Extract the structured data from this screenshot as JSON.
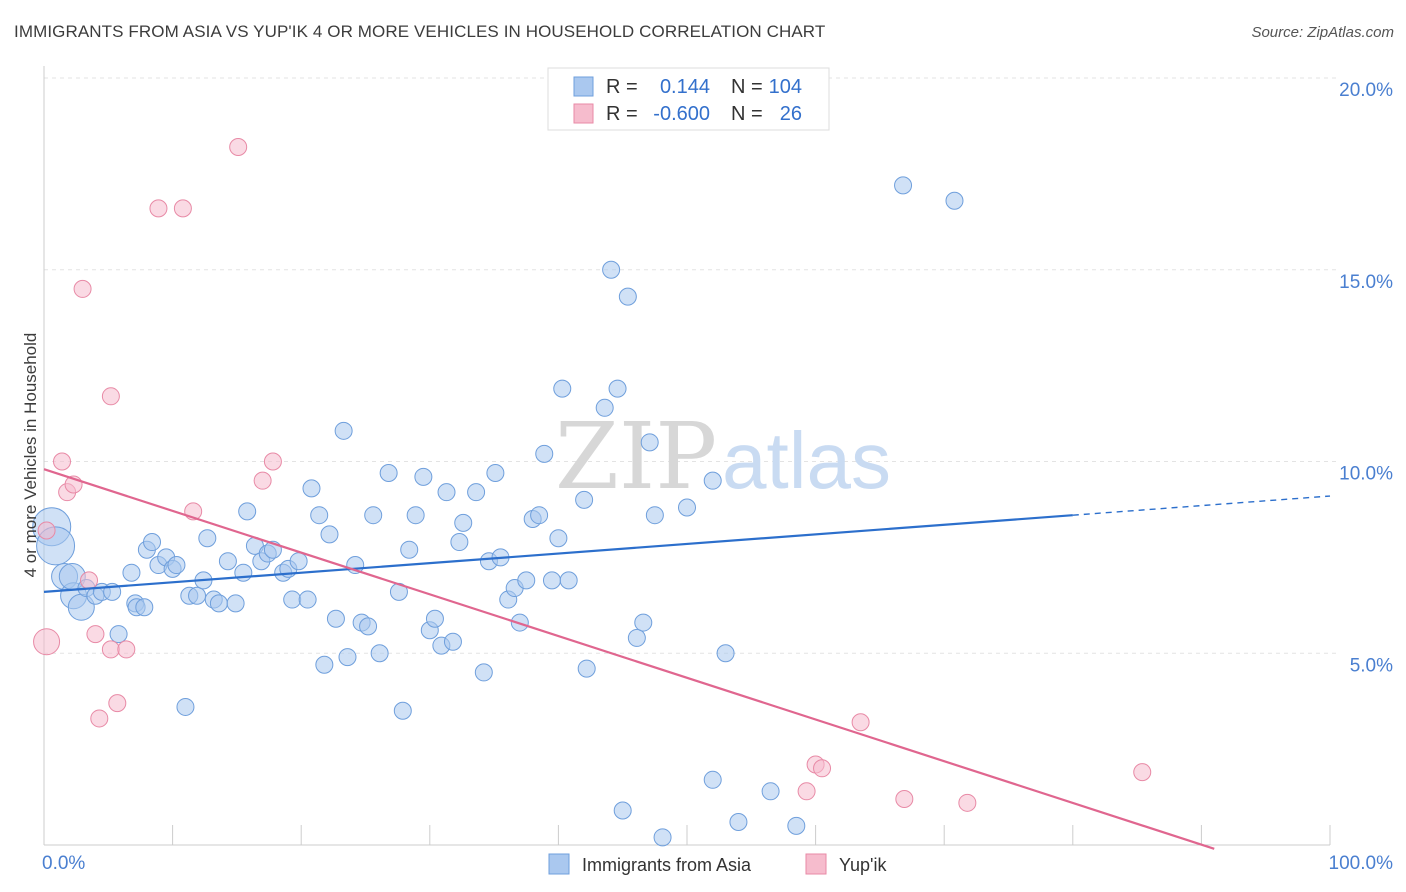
{
  "header": {
    "title": "IMMIGRANTS FROM ASIA VS YUP'IK 4 OR MORE VEHICLES IN HOUSEHOLD CORRELATION CHART",
    "source": "Source: ZipAtlas.com"
  },
  "watermark": {
    "zip": "ZIP",
    "atlas": "atlas"
  },
  "legend": {
    "rows": [
      {
        "r_label": "R =",
        "r_value": "0.144",
        "n_label": "N =",
        "n_value": "104",
        "color": "#aac8ef"
      },
      {
        "r_label": "R =",
        "r_value": "-0.600",
        "n_label": "N =",
        "n_value": "26",
        "color": "#f6bccd"
      }
    ]
  },
  "bottom_legend": [
    {
      "label": "Immigrants from Asia",
      "color": "#aac8ef"
    },
    {
      "label": "Yup'ik",
      "color": "#f6bccd"
    }
  ],
  "chart_data": {
    "type": "scatter",
    "title": "IMMIGRANTS FROM ASIA VS YUP'IK 4 OR MORE VEHICLES IN HOUSEHOLD CORRELATION CHART",
    "xlabel": "",
    "ylabel": "4 or more Vehicles in Household",
    "xlim": [
      0,
      100
    ],
    "ylim": [
      0,
      20
    ],
    "x_tick_labels": [
      "0.0%",
      "100.0%"
    ],
    "y_ticks": [
      5,
      10,
      15,
      20
    ],
    "y_tick_labels": [
      "5.0%",
      "10.0%",
      "15.0%",
      "20.0%"
    ],
    "grid": true,
    "series": [
      {
        "name": "Immigrants from Asia",
        "color": "#aac8ef",
        "stroke": "#6f9fdc",
        "trend_color": "#2c6fcc",
        "trend": {
          "x0": 0,
          "y0": 6.6,
          "x1": 80,
          "y1": 8.6,
          "dash_x1": 100,
          "dash_y1": 9.1
        },
        "points": [
          {
            "x": 0.6,
            "y": 8.3,
            "s": 3
          },
          {
            "x": 0.9,
            "y": 7.8,
            "s": 3
          },
          {
            "x": 1.6,
            "y": 7.0,
            "s": 2
          },
          {
            "x": 2.3,
            "y": 6.5,
            "s": 2
          },
          {
            "x": 2.9,
            "y": 6.2,
            "s": 2
          },
          {
            "x": 2.2,
            "y": 7.0,
            "s": 2
          },
          {
            "x": 3.3,
            "y": 6.7,
            "s": 1
          },
          {
            "x": 4.0,
            "y": 6.5,
            "s": 1
          },
          {
            "x": 4.5,
            "y": 6.6,
            "s": 1
          },
          {
            "x": 5.3,
            "y": 6.6,
            "s": 1
          },
          {
            "x": 5.8,
            "y": 5.5,
            "s": 1
          },
          {
            "x": 7.1,
            "y": 6.3,
            "s": 1
          },
          {
            "x": 7.2,
            "y": 6.2,
            "s": 1
          },
          {
            "x": 6.8,
            "y": 7.1,
            "s": 1
          },
          {
            "x": 7.8,
            "y": 6.2,
            "s": 1
          },
          {
            "x": 8.0,
            "y": 7.7,
            "s": 1
          },
          {
            "x": 8.4,
            "y": 7.9,
            "s": 1
          },
          {
            "x": 8.9,
            "y": 7.3,
            "s": 1
          },
          {
            "x": 9.5,
            "y": 7.5,
            "s": 1
          },
          {
            "x": 10.0,
            "y": 7.2,
            "s": 1
          },
          {
            "x": 10.3,
            "y": 7.3,
            "s": 1
          },
          {
            "x": 11.0,
            "y": 3.6,
            "s": 1
          },
          {
            "x": 11.3,
            "y": 6.5,
            "s": 1
          },
          {
            "x": 11.9,
            "y": 6.5,
            "s": 1
          },
          {
            "x": 12.4,
            "y": 6.9,
            "s": 1
          },
          {
            "x": 12.7,
            "y": 8.0,
            "s": 1
          },
          {
            "x": 13.2,
            "y": 6.4,
            "s": 1
          },
          {
            "x": 13.6,
            "y": 6.3,
            "s": 1
          },
          {
            "x": 14.3,
            "y": 7.4,
            "s": 1
          },
          {
            "x": 14.9,
            "y": 6.3,
            "s": 1
          },
          {
            "x": 15.5,
            "y": 7.1,
            "s": 1
          },
          {
            "x": 15.8,
            "y": 8.7,
            "s": 1
          },
          {
            "x": 16.4,
            "y": 7.8,
            "s": 1
          },
          {
            "x": 16.9,
            "y": 7.4,
            "s": 1
          },
          {
            "x": 17.4,
            "y": 7.6,
            "s": 1
          },
          {
            "x": 17.8,
            "y": 7.7,
            "s": 1
          },
          {
            "x": 18.6,
            "y": 7.1,
            "s": 1
          },
          {
            "x": 19.0,
            "y": 7.2,
            "s": 1
          },
          {
            "x": 19.3,
            "y": 6.4,
            "s": 1
          },
          {
            "x": 19.8,
            "y": 7.4,
            "s": 1
          },
          {
            "x": 20.5,
            "y": 6.4,
            "s": 1
          },
          {
            "x": 20.8,
            "y": 9.3,
            "s": 1
          },
          {
            "x": 21.4,
            "y": 8.6,
            "s": 1
          },
          {
            "x": 21.8,
            "y": 4.7,
            "s": 1
          },
          {
            "x": 22.2,
            "y": 8.1,
            "s": 1
          },
          {
            "x": 22.7,
            "y": 5.9,
            "s": 1
          },
          {
            "x": 23.3,
            "y": 10.8,
            "s": 1
          },
          {
            "x": 23.6,
            "y": 4.9,
            "s": 1
          },
          {
            "x": 24.2,
            "y": 7.3,
            "s": 1
          },
          {
            "x": 24.7,
            "y": 5.8,
            "s": 1
          },
          {
            "x": 25.2,
            "y": 5.7,
            "s": 1
          },
          {
            "x": 25.6,
            "y": 8.6,
            "s": 1
          },
          {
            "x": 26.1,
            "y": 5.0,
            "s": 1
          },
          {
            "x": 26.8,
            "y": 9.7,
            "s": 1
          },
          {
            "x": 27.6,
            "y": 6.6,
            "s": 1
          },
          {
            "x": 27.9,
            "y": 3.5,
            "s": 1
          },
          {
            "x": 28.4,
            "y": 7.7,
            "s": 1
          },
          {
            "x": 28.9,
            "y": 8.6,
            "s": 1
          },
          {
            "x": 29.5,
            "y": 9.6,
            "s": 1
          },
          {
            "x": 30.0,
            "y": 5.6,
            "s": 1
          },
          {
            "x": 30.4,
            "y": 5.9,
            "s": 1
          },
          {
            "x": 30.9,
            "y": 5.2,
            "s": 1
          },
          {
            "x": 31.3,
            "y": 9.2,
            "s": 1
          },
          {
            "x": 31.8,
            "y": 5.3,
            "s": 1
          },
          {
            "x": 32.3,
            "y": 7.9,
            "s": 1
          },
          {
            "x": 32.6,
            "y": 8.4,
            "s": 1
          },
          {
            "x": 33.6,
            "y": 9.2,
            "s": 1
          },
          {
            "x": 34.2,
            "y": 4.5,
            "s": 1
          },
          {
            "x": 34.6,
            "y": 7.4,
            "s": 1
          },
          {
            "x": 35.1,
            "y": 9.7,
            "s": 1
          },
          {
            "x": 35.5,
            "y": 7.5,
            "s": 1
          },
          {
            "x": 36.1,
            "y": 6.4,
            "s": 1
          },
          {
            "x": 36.6,
            "y": 6.7,
            "s": 1
          },
          {
            "x": 37.0,
            "y": 5.8,
            "s": 1
          },
          {
            "x": 37.5,
            "y": 6.9,
            "s": 1
          },
          {
            "x": 38.0,
            "y": 8.5,
            "s": 1
          },
          {
            "x": 38.5,
            "y": 8.6,
            "s": 1
          },
          {
            "x": 38.9,
            "y": 10.2,
            "s": 1
          },
          {
            "x": 39.5,
            "y": 6.9,
            "s": 1
          },
          {
            "x": 40.0,
            "y": 8.0,
            "s": 1
          },
          {
            "x": 40.3,
            "y": 11.9,
            "s": 1
          },
          {
            "x": 40.8,
            "y": 6.9,
            "s": 1
          },
          {
            "x": 42.2,
            "y": 4.6,
            "s": 1
          },
          {
            "x": 42.0,
            "y": 9.0,
            "s": 1
          },
          {
            "x": 43.6,
            "y": 11.4,
            "s": 1
          },
          {
            "x": 44.1,
            "y": 15.0,
            "s": 1
          },
          {
            "x": 44.6,
            "y": 11.9,
            "s": 1
          },
          {
            "x": 45.0,
            "y": 0.9,
            "s": 1
          },
          {
            "x": 45.4,
            "y": 14.3,
            "s": 1
          },
          {
            "x": 46.1,
            "y": 5.4,
            "s": 1
          },
          {
            "x": 46.6,
            "y": 5.8,
            "s": 1
          },
          {
            "x": 47.1,
            "y": 10.5,
            "s": 1
          },
          {
            "x": 47.5,
            "y": 8.6,
            "s": 1
          },
          {
            "x": 48.1,
            "y": 0.2,
            "s": 1
          },
          {
            "x": 50.0,
            "y": 8.8,
            "s": 1
          },
          {
            "x": 52.0,
            "y": 1.7,
            "s": 1
          },
          {
            "x": 52.0,
            "y": 9.5,
            "s": 1
          },
          {
            "x": 53.0,
            "y": 5.0,
            "s": 1
          },
          {
            "x": 54.0,
            "y": 0.6,
            "s": 1
          },
          {
            "x": 56.5,
            "y": 1.4,
            "s": 1
          },
          {
            "x": 58.5,
            "y": 0.5,
            "s": 1
          },
          {
            "x": 66.8,
            "y": 17.2,
            "s": 1
          },
          {
            "x": 70.8,
            "y": 16.8,
            "s": 1
          }
        ]
      },
      {
        "name": "Yup'ik",
        "color": "#f6bccd",
        "stroke": "#e88aa6",
        "trend_color": "#e0668f",
        "trend": {
          "x0": 0,
          "y0": 9.8,
          "x1": 91,
          "y1": -0.1
        },
        "points": [
          {
            "x": 0.2,
            "y": 5.3,
            "s": 2
          },
          {
            "x": 0.2,
            "y": 8.2,
            "s": 1
          },
          {
            "x": 1.4,
            "y": 10.0,
            "s": 1
          },
          {
            "x": 1.8,
            "y": 9.2,
            "s": 1
          },
          {
            "x": 2.3,
            "y": 9.4,
            "s": 1
          },
          {
            "x": 3.0,
            "y": 14.5,
            "s": 1
          },
          {
            "x": 3.5,
            "y": 6.9,
            "s": 1
          },
          {
            "x": 4.0,
            "y": 5.5,
            "s": 1
          },
          {
            "x": 4.3,
            "y": 3.3,
            "s": 1
          },
          {
            "x": 5.2,
            "y": 11.7,
            "s": 1
          },
          {
            "x": 5.2,
            "y": 5.1,
            "s": 1
          },
          {
            "x": 5.7,
            "y": 3.7,
            "s": 1
          },
          {
            "x": 6.4,
            "y": 5.1,
            "s": 1
          },
          {
            "x": 8.9,
            "y": 16.6,
            "s": 1
          },
          {
            "x": 10.8,
            "y": 16.6,
            "s": 1
          },
          {
            "x": 11.6,
            "y": 8.7,
            "s": 1
          },
          {
            "x": 15.1,
            "y": 18.2,
            "s": 1
          },
          {
            "x": 17.0,
            "y": 9.5,
            "s": 1
          },
          {
            "x": 17.8,
            "y": 10.0,
            "s": 1
          },
          {
            "x": 60.0,
            "y": 2.1,
            "s": 1
          },
          {
            "x": 60.5,
            "y": 2.0,
            "s": 1
          },
          {
            "x": 63.5,
            "y": 3.2,
            "s": 1
          },
          {
            "x": 59.3,
            "y": 1.4,
            "s": 1
          },
          {
            "x": 66.9,
            "y": 1.2,
            "s": 1
          },
          {
            "x": 71.8,
            "y": 1.1,
            "s": 1
          },
          {
            "x": 85.4,
            "y": 1.9,
            "s": 1
          }
        ]
      }
    ]
  }
}
